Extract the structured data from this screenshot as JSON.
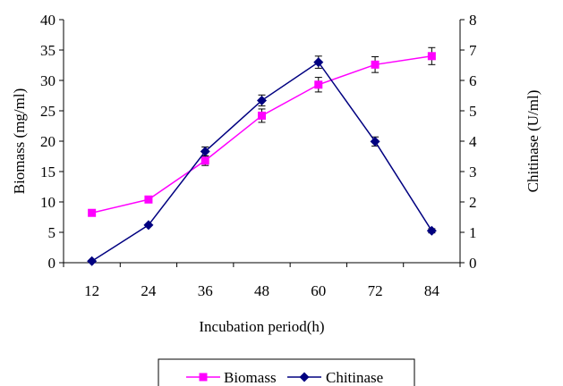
{
  "chart_data": {
    "type": "line",
    "categories": [
      "12",
      "24",
      "36",
      "48",
      "60",
      "72",
      "84"
    ],
    "xlabel": "Incubation period(h)",
    "ylabel_left": "Biomass (mg/ml)",
    "ylabel_right": "Chitinase (U/ml)",
    "ylim_left": [
      0,
      40
    ],
    "ylim_right": [
      0,
      8
    ],
    "yticks_left": [
      "0",
      "5",
      "10",
      "15",
      "20",
      "25",
      "30",
      "35",
      "40"
    ],
    "yticks_right": [
      "0",
      "1",
      "2",
      "3",
      "4",
      "5",
      "6",
      "7",
      "8"
    ],
    "grid": false,
    "legend_position": "bottom",
    "series": [
      {
        "name": "Biomass",
        "axis": "left",
        "color": "#ff00ff",
        "marker": "square",
        "values": [
          8.2,
          10.4,
          16.8,
          24.2,
          29.3,
          32.6,
          34.0
        ],
        "errors": [
          0.5,
          0.5,
          0.8,
          1.1,
          1.2,
          1.3,
          1.4
        ]
      },
      {
        "name": "Chitinase",
        "axis": "right",
        "color": "#000080",
        "marker": "diamond",
        "values": [
          0.05,
          1.24,
          3.66,
          5.34,
          6.6,
          3.99,
          1.05
        ],
        "errors": [
          0.0,
          0.0,
          0.15,
          0.18,
          0.2,
          0.15,
          0.07
        ]
      }
    ]
  }
}
